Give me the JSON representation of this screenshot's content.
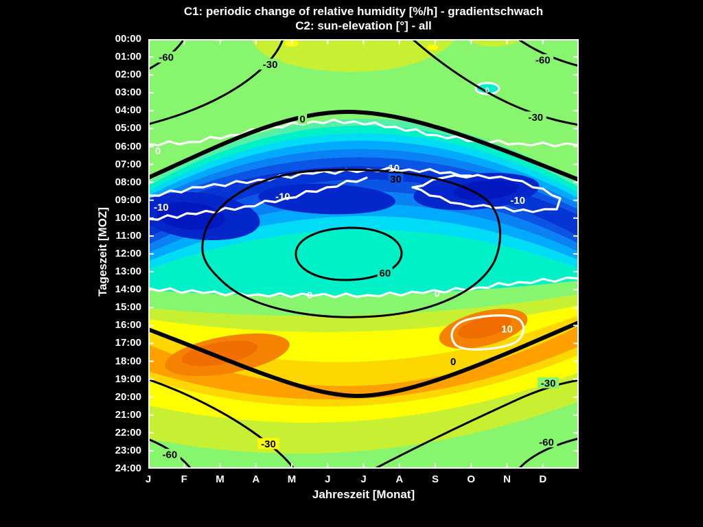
{
  "title": {
    "line1": "C1: periodic change of relative humidity [%/h] - gradientschwach",
    "line2": "C2: sun-elevation [°] - all"
  },
  "axes": {
    "x": {
      "label": "Jahreszeit [Monat]",
      "ticks": [
        "J",
        "F",
        "M",
        "A",
        "M",
        "J",
        "J",
        "A",
        "S",
        "O",
        "N",
        "D"
      ]
    },
    "y": {
      "label": "Tageszeit [MOZ]",
      "ticks": [
        "00:00",
        "01:00",
        "02:00",
        "03:00",
        "04:00",
        "05:00",
        "06:00",
        "07:00",
        "08:00",
        "09:00",
        "10:00",
        "11:00",
        "12:00",
        "13:00",
        "14:00",
        "15:00",
        "16:00",
        "17:00",
        "18:00",
        "19:00",
        "20:00",
        "21:00",
        "22:00",
        "23:00",
        "24:00"
      ]
    }
  },
  "colors": {
    "background": "#000000",
    "frame": "#ffffff",
    "c1_contour_line": "#ffffff",
    "c2_contour_line": "#000000"
  },
  "chart_data": {
    "type": "heatmap",
    "subtype": "filled-contour with two overlaid contour line sets",
    "title": "C1: periodic change of relative humidity [%/h] - gradientschwach / C2: sun-elevation [°] - all",
    "xlabel": "Jahreszeit [Monat]",
    "ylabel": "Tageszeit [MOZ]",
    "x_categories": [
      "J",
      "F",
      "M",
      "A",
      "M",
      "J",
      "J",
      "A",
      "S",
      "O",
      "N",
      "D"
    ],
    "y_range_hours": [
      0,
      24
    ],
    "c1": {
      "name": "periodic change of relative humidity",
      "units": "%/h",
      "contour_line_color": "white",
      "labeled_levels": [
        -10,
        0,
        10
      ],
      "field_summary": [
        {
          "region": "night (ca. 21:00-05:00)",
          "value": "near 0, slightly negative (-?) light green; yellow-green patches around midnight in May-Aug and 21:00-23:00"
        },
        {
          "region": "morning (ca. 05:30-11:00, follows sunrise)",
          "value": "strongly negative band, minimum below -10 %/h; deepest blue around 09:00-11:00 Jan-Mar and 08:00-10:00 Sep-Nov"
        },
        {
          "region": "midday (ca. 11:00-14:00)",
          "value": "weakly negative, -5 to 0 (turquoise/cyan), white 0-line near 14:00"
        },
        {
          "region": "evening (ca. 14:30-20:30, follows sunset)",
          "value": "positive band, maximum above +10 %/h around 16:30-18:30 Feb-Mar and 15:30-17:30 Sep-Oct (orange)"
        }
      ]
    },
    "c2": {
      "name": "sun-elevation",
      "units": "°",
      "contour_line_color": "black",
      "labeled_levels": [
        -60,
        -30,
        0,
        30,
        60
      ],
      "zero_line": "thick black curve: sunrise from ca. 07:45 (Jan) up to ca. 04:10 (Jun) back to 07:50 (Dec); sunset from ca. 16:20 (Jan) down to ca. 19:50 (Jun) back to 16:10 (Dec)"
    },
    "c2_labels": [
      {
        "text": "-60",
        "month": 0.5,
        "hour": 1.0,
        "bg": "#88F56E"
      },
      {
        "text": "-30",
        "month": 3.4,
        "hour": 1.4,
        "bg": "#88F56E"
      },
      {
        "text": "-60",
        "month": 11.0,
        "hour": 1.15,
        "bg": "#88F56E"
      },
      {
        "text": "-30",
        "month": 10.8,
        "hour": 4.35,
        "bg": "#88F56E"
      },
      {
        "text": "0",
        "month": 4.3,
        "hour": 4.45,
        "bg": "#88F56E"
      },
      {
        "text": "30",
        "month": 6.9,
        "hour": 7.8,
        "bg": "#0A55E6"
      },
      {
        "text": "60",
        "month": 6.6,
        "hour": 13.05,
        "bg": "#00F0C8"
      },
      {
        "text": "0",
        "month": 8.5,
        "hour": 18.0,
        "bg": "#FFD700"
      },
      {
        "text": "-30",
        "month": 11.15,
        "hour": 19.2,
        "bg": "#88F56E"
      },
      {
        "text": "-60",
        "month": 11.1,
        "hour": 22.5,
        "bg": "#88F56E"
      },
      {
        "text": "-30",
        "month": 3.35,
        "hour": 22.6,
        "bg": "#FFFF00"
      },
      {
        "text": "-60",
        "month": 0.6,
        "hour": 23.2,
        "bg": "#88F56E"
      }
    ],
    "c1_labels": [
      {
        "text": "0",
        "month": 0.27,
        "hour": 6.25
      },
      {
        "text": "-10",
        "month": 0.36,
        "hour": 9.4
      },
      {
        "text": "-10",
        "month": 3.75,
        "hour": 8.8
      },
      {
        "text": "-10",
        "month": 6.8,
        "hour": 7.2
      },
      {
        "text": "-10",
        "month": 10.3,
        "hour": 9.0
      },
      {
        "text": "0",
        "month": 4.5,
        "hour": 14.3
      },
      {
        "text": "0",
        "month": 8.05,
        "hour": 14.2
      },
      {
        "text": "10",
        "month": 10.0,
        "hour": 16.2
      },
      {
        "text": "0",
        "month": 9.45,
        "hour": 2.8,
        "small": true
      }
    ],
    "colormap": [
      "#0318BE",
      "#0427CC",
      "#0535D5",
      "#0A55E6",
      "#0A82F5",
      "#00AAFF",
      "#00DCF5",
      "#00F0C8",
      "#55F0A8",
      "#88F56E",
      "#C8F032",
      "#FFFF00",
      "#FFD700",
      "#FFA000",
      "#F58200",
      "#F06E00"
    ],
    "legend": "none (inline contour labels only)"
  }
}
